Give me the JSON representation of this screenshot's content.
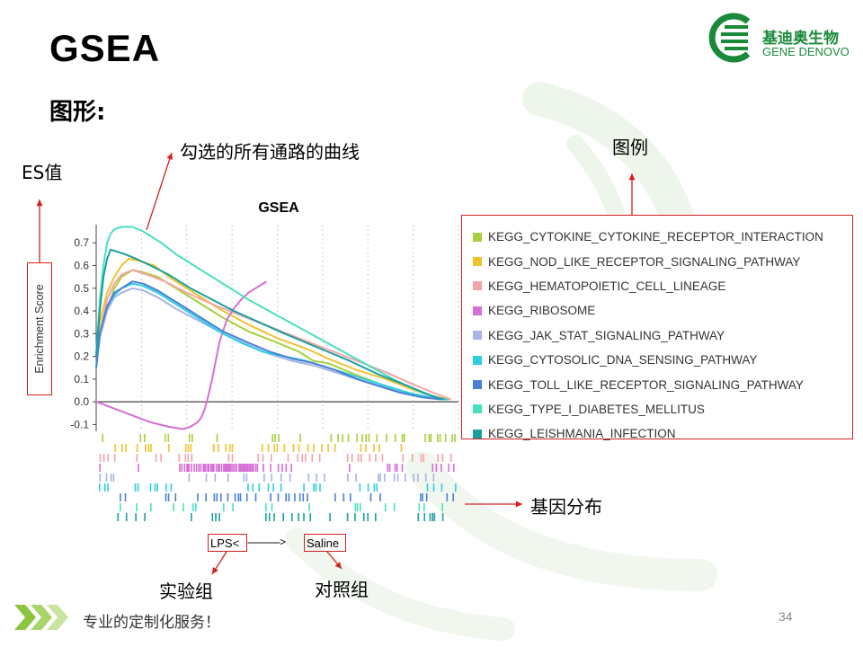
{
  "slide": {
    "title": "GSEA",
    "section": "图形:",
    "footer": "专业的定制化服务！",
    "page_number": "34"
  },
  "logo": {
    "name_cn": "基迪奥生物",
    "name_en": "GENE DENOVO",
    "color": "#1a8a3a"
  },
  "callouts": {
    "curves": "勾选的所有通路的曲线",
    "legend": "图例",
    "es_value": "ES值",
    "gene_distribution": "基因分布",
    "experimental_group": "实验组",
    "control_group": "对照组"
  },
  "group_labels": {
    "left": "LPS<",
    "dashes": "------------>",
    "right": "Saline"
  },
  "accent_color": "#d42020",
  "chart_data": {
    "type": "line",
    "title": "GSEA",
    "xlabel": "",
    "ylabel": "Enrichment Score",
    "ylim": [
      -0.13,
      0.78
    ],
    "yticks": [
      -0.1,
      0.0,
      0.1,
      0.2,
      0.3,
      0.4,
      0.5,
      0.6,
      0.7
    ],
    "ytick_labels": [
      "-0.1",
      "0.0",
      "0.1",
      "0.2",
      "0.3",
      "0.4",
      "0.5",
      "0.6",
      "0.7"
    ],
    "xlim": [
      0,
      100
    ],
    "grid": true,
    "legend_position": "right",
    "series": [
      {
        "name": "KEGG_CYTOKINE_CYTOKINE_RECEPTOR_INTERACTION",
        "color": "#a8cf3c",
        "x": [
          0,
          1,
          3,
          5,
          7,
          10,
          13,
          17,
          22,
          28,
          35,
          42,
          50,
          56,
          60,
          64,
          70,
          78,
          86,
          92,
          97
        ],
        "y": [
          0.2,
          0.3,
          0.4,
          0.5,
          0.55,
          0.58,
          0.57,
          0.55,
          0.5,
          0.44,
          0.37,
          0.31,
          0.26,
          0.22,
          0.18,
          0.17,
          0.13,
          0.08,
          0.04,
          0.02,
          0.01
        ]
      },
      {
        "name": "KEGG_NOD_LIKE_RECEPTOR_SIGNALING_PATHWAY",
        "color": "#f2c12e",
        "x": [
          0,
          1,
          3,
          5,
          7,
          9,
          12,
          16,
          21,
          28,
          35,
          42,
          50,
          57,
          60,
          64,
          72,
          80,
          88,
          94,
          98
        ],
        "y": [
          0.22,
          0.35,
          0.48,
          0.55,
          0.6,
          0.63,
          0.62,
          0.6,
          0.54,
          0.47,
          0.4,
          0.34,
          0.28,
          0.24,
          0.22,
          0.19,
          0.14,
          0.1,
          0.05,
          0.02,
          0.01
        ]
      },
      {
        "name": "KEGG_HEMATOPOIETIC_CELL_LINEAGE",
        "color": "#f4a4a4",
        "x": [
          0,
          1,
          3,
          5,
          7,
          10,
          14,
          19,
          25,
          32,
          40,
          48,
          56,
          64,
          72,
          80,
          87,
          93,
          98
        ],
        "y": [
          0.2,
          0.3,
          0.45,
          0.52,
          0.56,
          0.58,
          0.56,
          0.53,
          0.48,
          0.43,
          0.38,
          0.33,
          0.28,
          0.23,
          0.18,
          0.13,
          0.08,
          0.04,
          0.01
        ]
      },
      {
        "name": "KEGG_RIBOSOME",
        "color": "#d66ed6",
        "x": [
          0,
          5,
          10,
          15,
          20,
          24,
          26,
          28,
          29,
          30,
          31,
          32,
          33,
          34,
          35,
          36,
          38,
          40,
          42,
          44,
          46,
          47
        ],
        "y": [
          0.0,
          -0.03,
          -0.06,
          -0.09,
          -0.11,
          -0.12,
          -0.11,
          -0.09,
          -0.07,
          -0.03,
          0.03,
          0.1,
          0.18,
          0.26,
          0.31,
          0.36,
          0.41,
          0.45,
          0.48,
          0.5,
          0.52,
          0.53
        ]
      },
      {
        "name": "KEGG_JAK_STAT_SIGNALING_PATHWAY",
        "color": "#a6b4e6",
        "x": [
          0,
          1,
          3,
          5,
          7,
          10,
          13,
          17,
          22,
          28,
          35,
          42,
          48,
          54,
          60,
          66,
          72,
          78,
          84,
          90,
          95
        ],
        "y": [
          0.15,
          0.28,
          0.4,
          0.46,
          0.48,
          0.5,
          0.49,
          0.46,
          0.41,
          0.36,
          0.3,
          0.25,
          0.21,
          0.18,
          0.16,
          0.13,
          0.1,
          0.07,
          0.04,
          0.02,
          0.01
        ]
      },
      {
        "name": "KEGG_CYTOSOLIC_DNA_SENSING_PATHWAY",
        "color": "#2ccfe0",
        "x": [
          0,
          1,
          3,
          5,
          7,
          10,
          13,
          17,
          22,
          28,
          35,
          40,
          46,
          52,
          58,
          64,
          72,
          80,
          86,
          92,
          97
        ],
        "y": [
          0.15,
          0.3,
          0.42,
          0.47,
          0.5,
          0.52,
          0.51,
          0.48,
          0.43,
          0.37,
          0.3,
          0.26,
          0.22,
          0.2,
          0.18,
          0.15,
          0.11,
          0.07,
          0.04,
          0.02,
          0.01
        ]
      },
      {
        "name": "KEGG_TOLL_LIKE_RECEPTOR_SIGNALING_PATHWAY",
        "color": "#4a7fd8",
        "x": [
          0,
          1,
          3,
          5,
          7,
          10,
          13,
          17,
          22,
          28,
          35,
          42,
          48,
          54,
          60,
          66,
          72,
          78,
          84,
          90,
          96
        ],
        "y": [
          0.15,
          0.3,
          0.42,
          0.48,
          0.5,
          0.53,
          0.52,
          0.49,
          0.44,
          0.38,
          0.31,
          0.26,
          0.22,
          0.19,
          0.17,
          0.14,
          0.1,
          0.07,
          0.04,
          0.02,
          0.01
        ]
      },
      {
        "name": "KEGG_TYPE_I_DIABETES_MELLITUS",
        "color": "#48e0c0",
        "x": [
          0,
          1,
          2,
          3,
          4,
          5,
          7,
          10,
          13,
          16,
          18,
          22,
          28,
          35,
          42,
          50,
          58,
          66,
          74,
          82,
          90,
          96
        ],
        "y": [
          0.2,
          0.45,
          0.6,
          0.7,
          0.74,
          0.76,
          0.77,
          0.77,
          0.75,
          0.72,
          0.7,
          0.65,
          0.59,
          0.52,
          0.45,
          0.38,
          0.31,
          0.24,
          0.17,
          0.1,
          0.04,
          0.01
        ]
      },
      {
        "name": "KEGG_LEISHMANIA_INFECTION",
        "color": "#1b9ea0",
        "x": [
          0,
          1,
          2,
          3,
          4,
          6,
          8,
          11,
          15,
          20,
          26,
          32,
          38,
          45,
          52,
          58,
          64,
          70,
          78,
          86,
          92,
          96
        ],
        "y": [
          0.2,
          0.4,
          0.55,
          0.63,
          0.67,
          0.66,
          0.65,
          0.63,
          0.6,
          0.56,
          0.5,
          0.45,
          0.4,
          0.35,
          0.3,
          0.26,
          0.22,
          0.18,
          0.12,
          0.07,
          0.03,
          0.01
        ]
      }
    ]
  }
}
